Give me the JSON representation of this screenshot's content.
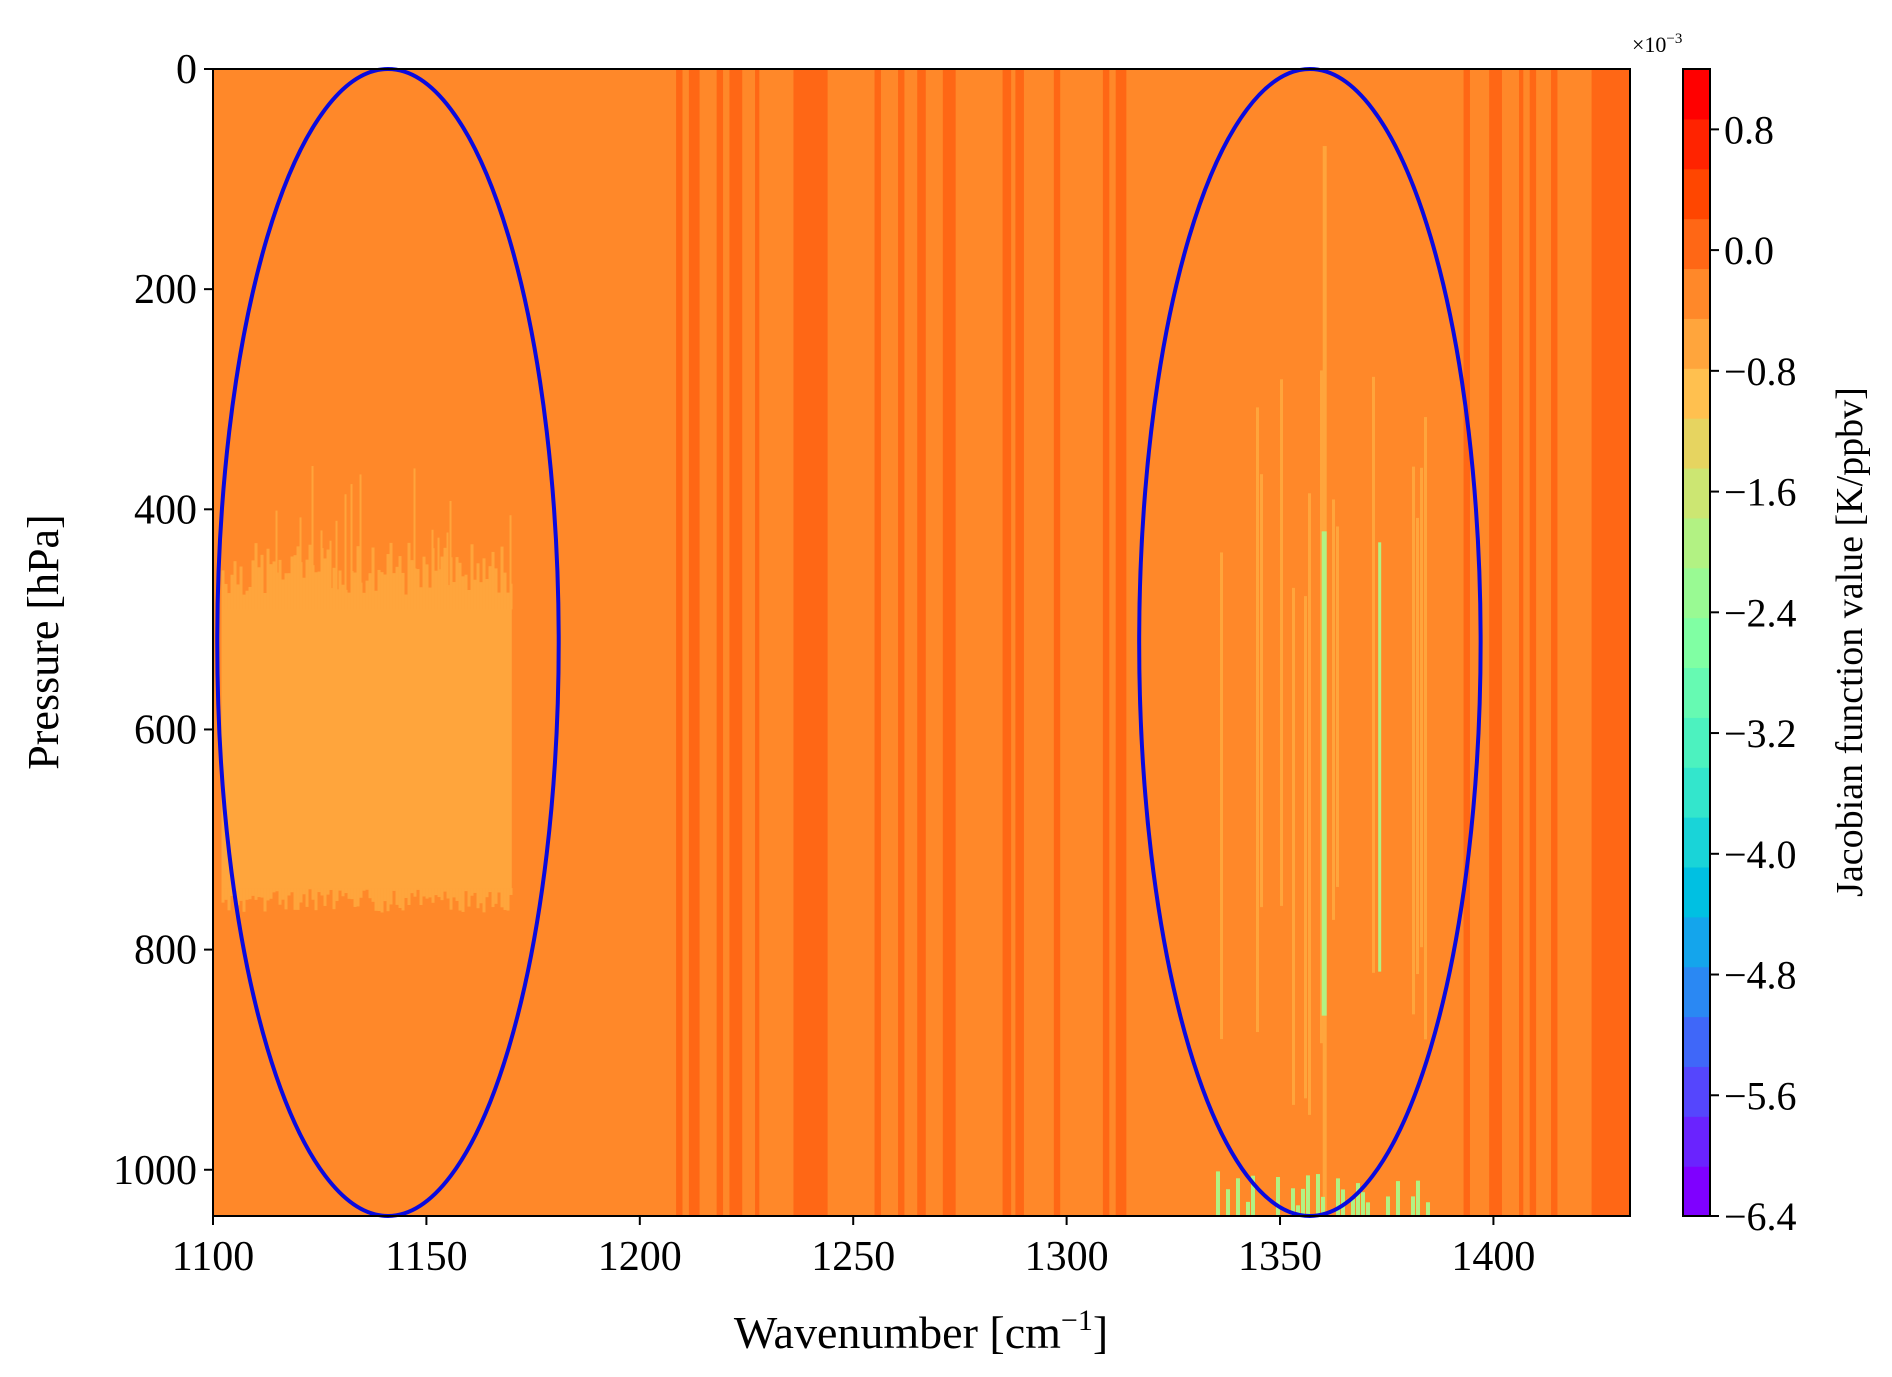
{
  "chart_data": {
    "type": "heatmap",
    "title": "",
    "xlabel": "Wavenumber [cm",
    "xlabel_sup": "−1",
    "xlabel_suffix": "]",
    "ylabel": "Pressure [hPa]",
    "colorbar_label": "Jacobian function value [K/ppbv]",
    "colorbar_multiplier": "×10",
    "colorbar_multiplier_exp": "−3",
    "xlim": [
      1100,
      1432
    ],
    "ylim": [
      1042,
      0
    ],
    "xticks": [
      1100,
      1150,
      1200,
      1250,
      1300,
      1350,
      1400
    ],
    "yticks": [
      0,
      200,
      400,
      600,
      800,
      1000
    ],
    "colorbar_range": [
      -6.4,
      1.2
    ],
    "colorbar_ticks": [
      "0.8",
      "0.0",
      "−0.8",
      "−1.6",
      "−2.4",
      "−3.2",
      "−4.0",
      "−4.8",
      "−5.6",
      "−6.4"
    ],
    "colorbar_tick_values": [
      0.8,
      0.0,
      -0.8,
      -1.6,
      -2.4,
      -3.2,
      -4.0,
      -4.8,
      -5.6,
      -6.4
    ],
    "colormap": [
      "#7f00ff",
      "#6a23fe",
      "#5546fd",
      "#3f67f9",
      "#2a88f3",
      "#14a5ec",
      "#00c0e2",
      "#19d4d8",
      "#33e6cc",
      "#4cf2bf",
      "#66fab2",
      "#80ffa3",
      "#99fa93",
      "#b2f283",
      "#cce672",
      "#e6d460",
      "#ffc04f",
      "#ffa53c",
      "#ff8829",
      "#ff6715",
      "#ff4600",
      "#ff2300",
      "#ff0000"
    ],
    "background_value": -0.2,
    "band_value": 0.2,
    "anomaly_value": -0.6,
    "deep_anomaly_value": -1.8,
    "bands_x": [
      [
        1208.5,
        1210
      ],
      [
        1211.5,
        1214
      ],
      [
        1218,
        1219.5
      ],
      [
        1221,
        1224
      ],
      [
        1227,
        1228
      ],
      [
        1236,
        1244
      ],
      [
        1255,
        1256.5
      ],
      [
        1260.5,
        1262
      ],
      [
        1265,
        1267
      ],
      [
        1271,
        1274
      ],
      [
        1285,
        1287
      ],
      [
        1288,
        1290
      ],
      [
        1297,
        1298.5
      ],
      [
        1308.5,
        1310
      ],
      [
        1311.5,
        1314
      ],
      [
        1393,
        1394.5
      ],
      [
        1399,
        1402
      ],
      [
        1406,
        1407
      ],
      [
        1408.5,
        1410
      ],
      [
        1413.5,
        1415
      ],
      [
        1423,
        1432
      ]
    ],
    "anomaly_regions": [
      {
        "x": [
          1102,
          1170
        ],
        "p": [
          490,
          745
        ]
      },
      {
        "x": [
          1335,
          1385
        ],
        "p": [
          260,
          1042
        ],
        "striped": true
      }
    ],
    "highlight_ellipses": [
      {
        "center": [
          1141,
          521
        ],
        "x_radius": 40,
        "p_radius": 521,
        "color": "#0a0adf"
      },
      {
        "center": [
          1357,
          521
        ],
        "x_radius": 40,
        "p_radius": 521,
        "color": "#0a0adf"
      }
    ]
  }
}
